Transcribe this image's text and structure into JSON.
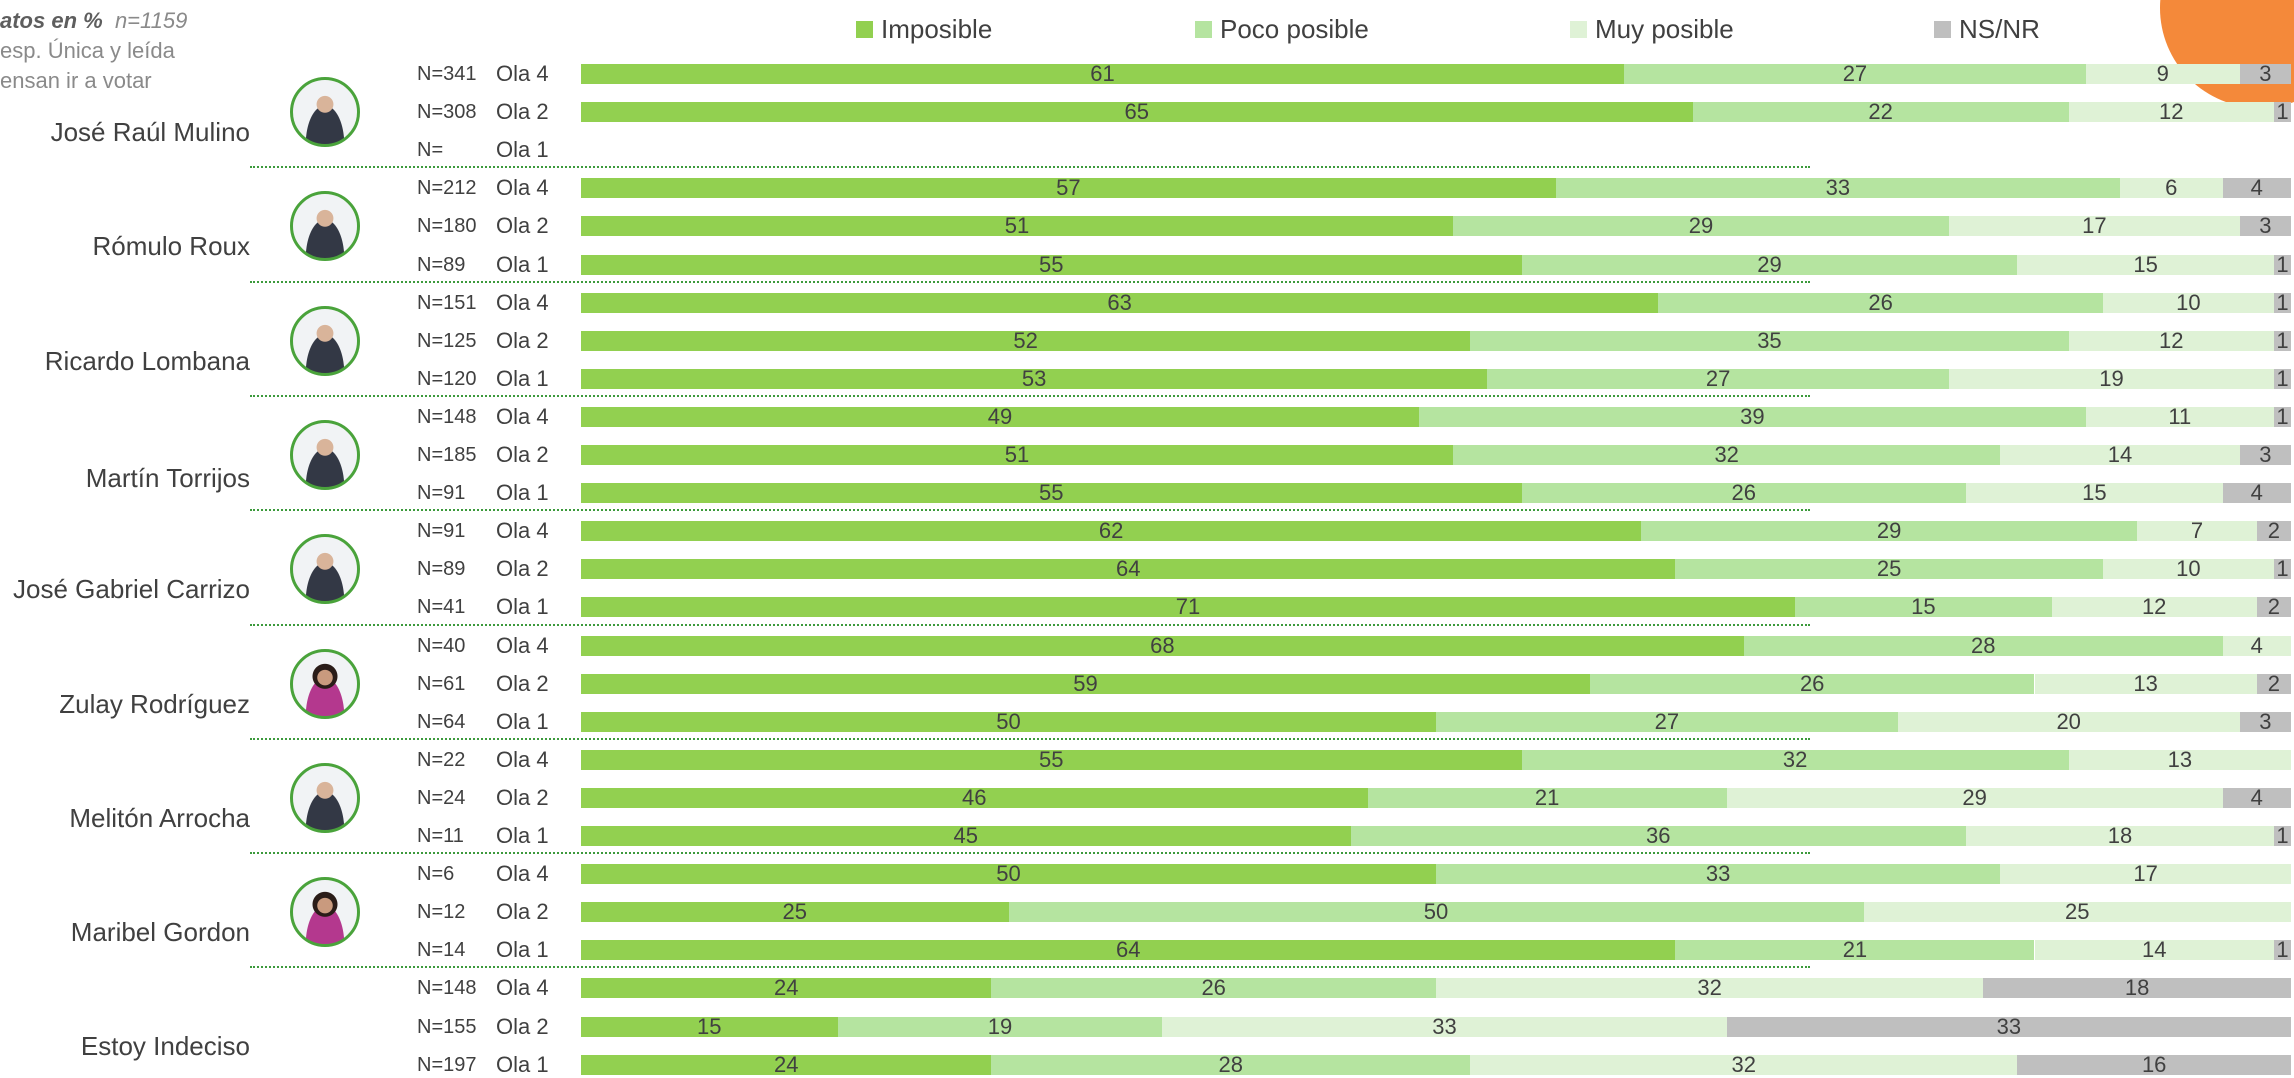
{
  "header": {
    "note_label": "atos en %",
    "note_n": "n=1159",
    "line2": "esp. Única y leída",
    "line3": "ensan ir a votar"
  },
  "colors": {
    "imposible": "#92d050",
    "poco_posible": "#b5e4a0",
    "muy_posible": "#dff2d6",
    "ns_nr": "#bfbfbf",
    "accent_circle": "#f4893a",
    "separator": "#3c9a3c"
  },
  "chart_data": {
    "type": "bar",
    "orientation": "horizontal",
    "stacked": true,
    "xlim": [
      0,
      100
    ],
    "legend_position": "top",
    "series_names": [
      "Imposible",
      "Poco posible",
      "Muy posible",
      "NS/NR"
    ],
    "groups": [
      {
        "name": "José Raúl Mulino",
        "rows": [
          {
            "n": "N=341",
            "ola": "Ola 4",
            "values": [
              61,
              27,
              9,
              3
            ],
            "labels": [
              "61",
              "27",
              "9",
              "3"
            ]
          },
          {
            "n": "N=308",
            "ola": "Ola 2",
            "values": [
              65,
              22,
              12,
              1
            ],
            "labels": [
              "65",
              "22",
              "12",
              "1"
            ]
          },
          {
            "n": "N=",
            "ola": "Ola 1",
            "values": [
              0,
              0,
              0,
              0
            ],
            "labels": [
              "",
              "",
              "",
              ""
            ]
          }
        ]
      },
      {
        "name": "Rómulo Roux",
        "rows": [
          {
            "n": "N=212",
            "ola": "Ola 4",
            "values": [
              57,
              33,
              6,
              4
            ],
            "labels": [
              "57",
              "33",
              "6",
              "4"
            ]
          },
          {
            "n": "N=180",
            "ola": "Ola 2",
            "values": [
              51,
              29,
              17,
              3
            ],
            "labels": [
              "51",
              "29",
              "17",
              "3"
            ]
          },
          {
            "n": "N=89",
            "ola": "Ola 1",
            "values": [
              55,
              29,
              15,
              1
            ],
            "labels": [
              "55",
              "29",
              "15",
              "1"
            ]
          }
        ]
      },
      {
        "name": "Ricardo Lombana",
        "rows": [
          {
            "n": "N=151",
            "ola": "Ola 4",
            "values": [
              63,
              26,
              10,
              1
            ],
            "labels": [
              "63",
              "26",
              "10",
              "1"
            ]
          },
          {
            "n": "N=125",
            "ola": "Ola 2",
            "values": [
              52,
              35,
              12,
              1
            ],
            "labels": [
              "52",
              "35",
              "12",
              "1"
            ]
          },
          {
            "n": "N=120",
            "ola": "Ola 1",
            "values": [
              53,
              27,
              19,
              1
            ],
            "labels": [
              "53",
              "27",
              "19",
              "1"
            ]
          }
        ]
      },
      {
        "name": "Martín Torrijos",
        "rows": [
          {
            "n": "N=148",
            "ola": "Ola 4",
            "values": [
              49,
              39,
              11,
              1
            ],
            "labels": [
              "49",
              "39",
              "11",
              "1"
            ]
          },
          {
            "n": "N=185",
            "ola": "Ola 2",
            "values": [
              51,
              32,
              14,
              3
            ],
            "labels": [
              "51",
              "32",
              "14",
              "3"
            ]
          },
          {
            "n": "N=91",
            "ola": "Ola 1",
            "values": [
              55,
              26,
              15,
              4
            ],
            "labels": [
              "55",
              "26",
              "15",
              "4"
            ]
          }
        ]
      },
      {
        "name": "José Gabriel Carrizo",
        "rows": [
          {
            "n": "N=91",
            "ola": "Ola 4",
            "values": [
              62,
              29,
              7,
              2
            ],
            "labels": [
              "62",
              "29",
              "7",
              "2"
            ]
          },
          {
            "n": "N=89",
            "ola": "Ola 2",
            "values": [
              64,
              25,
              10,
              1
            ],
            "labels": [
              "64",
              "25",
              "10",
              "1"
            ]
          },
          {
            "n": "N=41",
            "ola": "Ola 1",
            "values": [
              71,
              15,
              12,
              2
            ],
            "labels": [
              "71",
              "15",
              "12",
              "2"
            ]
          }
        ]
      },
      {
        "name": "Zulay Rodríguez",
        "rows": [
          {
            "n": "N=40",
            "ola": "Ola 4",
            "values": [
              68,
              28,
              4,
              0
            ],
            "labels": [
              "68",
              "28",
              "4",
              ""
            ]
          },
          {
            "n": "N=61",
            "ola": "Ola 2",
            "values": [
              59,
              26,
              13,
              2
            ],
            "labels": [
              "59",
              "26",
              "13",
              "2"
            ]
          },
          {
            "n": "N=64",
            "ola": "Ola 1",
            "values": [
              50,
              27,
              20,
              3
            ],
            "labels": [
              "50",
              "27",
              "20",
              "3"
            ]
          }
        ]
      },
      {
        "name": "Melitón Arrocha",
        "rows": [
          {
            "n": "N=22",
            "ola": "Ola 4",
            "values": [
              55,
              32,
              13,
              0
            ],
            "labels": [
              "55",
              "32",
              "13",
              ""
            ]
          },
          {
            "n": "N=24",
            "ola": "Ola 2",
            "values": [
              46,
              21,
              29,
              4
            ],
            "labels": [
              "46",
              "21",
              "29",
              "4"
            ]
          },
          {
            "n": "N=11",
            "ola": "Ola 1",
            "values": [
              45,
              36,
              18,
              1
            ],
            "labels": [
              "45",
              "36",
              "18",
              "1"
            ]
          }
        ]
      },
      {
        "name": "Maribel Gordon",
        "rows": [
          {
            "n": "N=6",
            "ola": "Ola 4",
            "values": [
              50,
              33,
              17,
              0
            ],
            "labels": [
              "50",
              "33",
              "17",
              ""
            ]
          },
          {
            "n": "N=12",
            "ola": "Ola 2",
            "values": [
              25,
              50,
              25,
              0
            ],
            "labels": [
              "25",
              "50",
              "25",
              ""
            ]
          },
          {
            "n": "N=14",
            "ola": "Ola 1",
            "values": [
              64,
              21,
              14,
              1
            ],
            "labels": [
              "64",
              "21",
              "14",
              "1"
            ]
          }
        ]
      },
      {
        "name": "Estoy Indeciso",
        "rows": [
          {
            "n": "N=148",
            "ola": "Ola 4",
            "values": [
              24,
              26,
              32,
              18
            ],
            "labels": [
              "24",
              "26",
              "32",
              "18"
            ]
          },
          {
            "n": "N=155",
            "ola": "Ola 2",
            "values": [
              15,
              19,
              33,
              33
            ],
            "labels": [
              "15",
              "19",
              "33",
              "33"
            ]
          },
          {
            "n": "N=197",
            "ola": "Ola 1",
            "values": [
              24,
              28,
              32,
              16
            ],
            "labels": [
              "24",
              "28",
              "32",
              "16"
            ]
          }
        ]
      }
    ]
  }
}
